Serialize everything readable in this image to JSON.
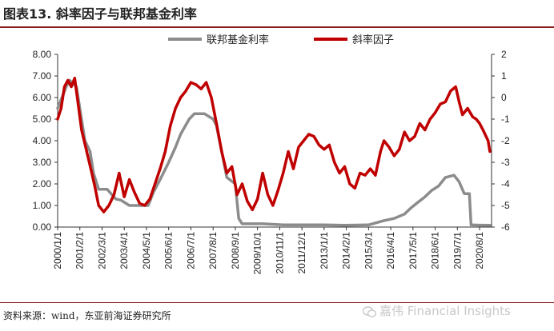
{
  "figure": {
    "title": "图表13. 斜率因子与联邦基金利率",
    "source": "资料来源：wind，东亚前海证券研究所",
    "watermark": "嘉伟 Financial Insights"
  },
  "colors": {
    "fed_rate": "#8c8c8c",
    "slope": "#c00000",
    "title_rule": "#8a1c1c"
  },
  "chart_data": {
    "type": "line",
    "x_categories": [
      "2000/1/1",
      "2001/2/1",
      "2002/3/1",
      "2003/4/1",
      "2004/5/1",
      "2005/6/1",
      "2006/7/1",
      "2007/8/1",
      "2008/9/1",
      "2009/10/1",
      "2010/11/1",
      "2011/12/1",
      "2013/1/1",
      "2014/2/1",
      "2015/3/1",
      "2016/4/1",
      "2017/5/1",
      "2018/6/1",
      "2019/7/1",
      "2020/8/1"
    ],
    "y_left": {
      "range": [
        0,
        8
      ],
      "ticks": [
        "0.00",
        "1.00",
        "2.00",
        "3.00",
        "4.00",
        "5.00",
        "6.00",
        "7.00",
        "8.00"
      ]
    },
    "y_right": {
      "range": [
        -6,
        2
      ],
      "ticks": [
        "-6",
        "-5",
        "-4",
        "-3",
        "-2",
        "-1",
        "0",
        "1",
        "2"
      ]
    },
    "legend_position": "top-center",
    "grid": false,
    "series": [
      {
        "name": "联邦基金利率",
        "axis": "left",
        "points": [
          [
            "2000/1/1",
            5.5
          ],
          [
            "2000/6/1",
            6.5
          ],
          [
            "2000/8/1",
            6.8
          ],
          [
            "2000/12/1",
            6.5
          ],
          [
            "2001/2/1",
            5.5
          ],
          [
            "2001/5/1",
            4.0
          ],
          [
            "2001/8/1",
            3.5
          ],
          [
            "2001/10/1",
            2.5
          ],
          [
            "2002/1/1",
            1.75
          ],
          [
            "2002/6/1",
            1.75
          ],
          [
            "2002/11/1",
            1.3
          ],
          [
            "2003/2/1",
            1.25
          ],
          [
            "2003/7/1",
            1.0
          ],
          [
            "2004/1/1",
            1.0
          ],
          [
            "2004/6/1",
            1.0
          ],
          [
            "2004/9/1",
            1.6
          ],
          [
            "2005/1/1",
            2.2
          ],
          [
            "2005/6/1",
            3.0
          ],
          [
            "2005/10/1",
            3.7
          ],
          [
            "2006/1/1",
            4.3
          ],
          [
            "2006/6/1",
            5.0
          ],
          [
            "2006/9/1",
            5.25
          ],
          [
            "2007/3/1",
            5.25
          ],
          [
            "2007/8/1",
            5.0
          ],
          [
            "2007/10/1",
            4.7
          ],
          [
            "2008/1/1",
            3.5
          ],
          [
            "2008/4/1",
            2.3
          ],
          [
            "2008/9/1",
            2.0
          ],
          [
            "2008/11/1",
            0.4
          ],
          [
            "2009/1/1",
            0.15
          ],
          [
            "2010/1/1",
            0.15
          ],
          [
            "2011/1/1",
            0.1
          ],
          [
            "2012/1/1",
            0.1
          ],
          [
            "2013/1/1",
            0.1
          ],
          [
            "2014/1/1",
            0.08
          ],
          [
            "2015/3/1",
            0.1
          ],
          [
            "2015/12/1",
            0.3
          ],
          [
            "2016/6/1",
            0.4
          ],
          [
            "2016/12/1",
            0.6
          ],
          [
            "2017/4/1",
            0.9
          ],
          [
            "2017/8/1",
            1.15
          ],
          [
            "2017/12/1",
            1.4
          ],
          [
            "2018/4/1",
            1.7
          ],
          [
            "2018/8/1",
            1.9
          ],
          [
            "2018/12/1",
            2.3
          ],
          [
            "2019/5/1",
            2.4
          ],
          [
            "2019/8/1",
            2.1
          ],
          [
            "2019/11/1",
            1.55
          ],
          [
            "2020/2/1",
            1.55
          ],
          [
            "2020/3/1",
            0.1
          ],
          [
            "2020/8/1",
            0.09
          ],
          [
            "2021/2/1",
            0.08
          ]
        ]
      },
      {
        "name": "斜率因子",
        "axis": "right",
        "points": [
          [
            "2000/1/1",
            -1.0
          ],
          [
            "2000/3/1",
            -0.5
          ],
          [
            "2000/5/1",
            0.5
          ],
          [
            "2000/7/1",
            0.8
          ],
          [
            "2000/9/1",
            0.5
          ],
          [
            "2000/11/1",
            0.9
          ],
          [
            "2001/1/1",
            -0.3
          ],
          [
            "2001/3/1",
            -1.5
          ],
          [
            "2001/6/1",
            -2.5
          ],
          [
            "2001/9/1",
            -3.5
          ],
          [
            "2001/11/1",
            -4.2
          ],
          [
            "2002/1/1",
            -5.0
          ],
          [
            "2002/4/1",
            -5.3
          ],
          [
            "2002/7/1",
            -5.0
          ],
          [
            "2002/10/1",
            -4.5
          ],
          [
            "2003/1/1",
            -3.5
          ],
          [
            "2003/4/1",
            -4.6
          ],
          [
            "2003/7/1",
            -3.8
          ],
          [
            "2003/10/1",
            -4.4
          ],
          [
            "2004/1/1",
            -4.9
          ],
          [
            "2004/4/1",
            -5.0
          ],
          [
            "2004/7/1",
            -4.7
          ],
          [
            "2004/10/1",
            -4.0
          ],
          [
            "2005/1/1",
            -3.3
          ],
          [
            "2005/4/1",
            -2.5
          ],
          [
            "2005/7/1",
            -1.3
          ],
          [
            "2005/10/1",
            -0.5
          ],
          [
            "2006/1/1",
            0.0
          ],
          [
            "2006/4/1",
            0.3
          ],
          [
            "2006/7/1",
            0.7
          ],
          [
            "2006/10/1",
            0.6
          ],
          [
            "2007/1/1",
            0.4
          ],
          [
            "2007/4/1",
            0.7
          ],
          [
            "2007/7/1",
            0.0
          ],
          [
            "2007/10/1",
            -1.2
          ],
          [
            "2008/1/1",
            -2.5
          ],
          [
            "2008/4/1",
            -3.5
          ],
          [
            "2008/7/1",
            -3.2
          ],
          [
            "2008/10/1",
            -4.5
          ],
          [
            "2009/1/1",
            -4.0
          ],
          [
            "2009/4/1",
            -4.8
          ],
          [
            "2009/7/1",
            -5.2
          ],
          [
            "2009/10/1",
            -4.7
          ],
          [
            "2010/1/1",
            -3.5
          ],
          [
            "2010/4/1",
            -4.5
          ],
          [
            "2010/7/1",
            -5.0
          ],
          [
            "2010/10/1",
            -4.3
          ],
          [
            "2011/1/1",
            -3.5
          ],
          [
            "2011/4/1",
            -2.5
          ],
          [
            "2011/7/1",
            -3.3
          ],
          [
            "2011/10/1",
            -2.3
          ],
          [
            "2012/1/1",
            -2.0
          ],
          [
            "2012/4/1",
            -1.7
          ],
          [
            "2012/7/1",
            -1.8
          ],
          [
            "2012/10/1",
            -2.2
          ],
          [
            "2013/1/1",
            -2.4
          ],
          [
            "2013/4/1",
            -2.2
          ],
          [
            "2013/7/1",
            -3.0
          ],
          [
            "2013/10/1",
            -3.5
          ],
          [
            "2014/1/1",
            -3.2
          ],
          [
            "2014/4/1",
            -4.0
          ],
          [
            "2014/7/1",
            -4.2
          ],
          [
            "2014/10/1",
            -3.5
          ],
          [
            "2015/1/1",
            -3.6
          ],
          [
            "2015/4/1",
            -3.3
          ],
          [
            "2015/7/1",
            -3.6
          ],
          [
            "2015/10/1",
            -2.5
          ],
          [
            "2015/12/1",
            -2.0
          ],
          [
            "2016/3/1",
            -2.3
          ],
          [
            "2016/6/1",
            -2.7
          ],
          [
            "2016/9/1",
            -2.4
          ],
          [
            "2016/12/1",
            -1.6
          ],
          [
            "2017/3/1",
            -2.0
          ],
          [
            "2017/6/1",
            -1.8
          ],
          [
            "2017/9/1",
            -1.2
          ],
          [
            "2017/12/1",
            -1.5
          ],
          [
            "2018/3/1",
            -1.0
          ],
          [
            "2018/6/1",
            -0.7
          ],
          [
            "2018/9/1",
            -0.3
          ],
          [
            "2018/12/1",
            -0.2
          ],
          [
            "2019/3/1",
            0.3
          ],
          [
            "2019/6/1",
            0.5
          ],
          [
            "2019/8/1",
            -0.2
          ],
          [
            "2019/10/1",
            -0.8
          ],
          [
            "2020/1/1",
            -0.5
          ],
          [
            "2020/4/1",
            -0.9
          ],
          [
            "2020/6/1",
            -1.0
          ],
          [
            "2020/8/1",
            -1.2
          ],
          [
            "2020/10/1",
            -1.5
          ],
          [
            "2021/1/1",
            -2.0
          ],
          [
            "2021/2/1",
            -2.5
          ]
        ]
      }
    ]
  }
}
